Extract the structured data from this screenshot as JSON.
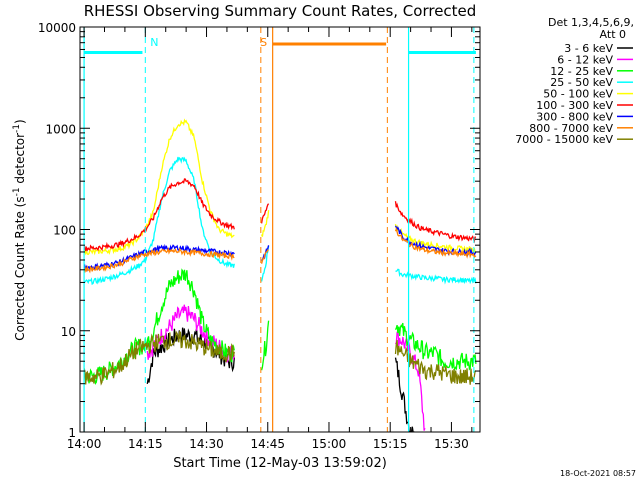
{
  "chart_data": {
    "type": "line",
    "title": "RHESSI Observing Summary Count Rates, Corrected",
    "xlabel": "Start Time (12-May-03 13:59:02)",
    "ylabel": "Corrected Count Rate (s⁻¹ detector⁻¹)",
    "ylabel_main": "Corrected Count Rate (s",
    "ylabel_mid": " detector",
    "ylabel_close": ")",
    "yscale": "log",
    "ylim": [
      1,
      10000
    ],
    "xlim_minutes": [
      -1,
      97
    ],
    "x_ticks": [
      {
        "label": "14:00",
        "min": 0
      },
      {
        "label": "14:15",
        "min": 15
      },
      {
        "label": "14:30",
        "min": 30
      },
      {
        "label": "14:45",
        "min": 45
      },
      {
        "label": "15:00",
        "min": 60
      },
      {
        "label": "15:15",
        "min": 75
      },
      {
        "label": "15:30",
        "min": 90
      }
    ],
    "y_ticks": [
      {
        "label": "1",
        "v": 1
      },
      {
        "label": "10",
        "v": 10
      },
      {
        "label": "100",
        "v": 100
      },
      {
        "label": "1000",
        "v": 1000
      },
      {
        "label": "10000",
        "v": 10000
      }
    ],
    "legend_header": [
      "Det 1,3,4,5,6,9,",
      "Att 0"
    ],
    "legend_position": "right",
    "timestamp": "18-Oct-2021 08:57",
    "series": [
      {
        "name": "3 - 6 keV",
        "color": "#000000",
        "segments": [
          {
            "x": [
              15.5,
              17,
              19,
              21,
              23,
              25,
              27,
              29,
              31,
              33,
              35,
              36.8
            ],
            "y": [
              3,
              6,
              7,
              8,
              9,
              9,
              9,
              8,
              7,
              6,
              5,
              5
            ]
          },
          {
            "x": [
              76.3,
              77.5,
              79,
              80,
              81
            ],
            "y": [
              5,
              3,
              1.5,
              1,
              1
            ]
          }
        ]
      },
      {
        "name": "6 - 12 keV",
        "color": "#ff00ff",
        "segments": [
          {
            "x": [
              15.5,
              17,
              19,
              21,
              23,
              25,
              27,
              29,
              31,
              33,
              35,
              36.8
            ],
            "y": [
              6,
              7,
              9,
              11,
              14,
              15,
              13,
              10,
              8,
              7,
              6,
              6
            ]
          },
          {
            "x": [
              76.3,
              78,
              80,
              82,
              83.5
            ],
            "y": [
              9,
              8,
              6,
              4,
              1
            ]
          }
        ]
      },
      {
        "name": "12 - 25 keV",
        "color": "#00ff00",
        "segments": [
          {
            "x": [
              0,
              3,
              6,
              9,
              11,
              13,
              15,
              17,
              19,
              21,
              23,
              25,
              27,
              29,
              31,
              33,
              35,
              36.8
            ],
            "y": [
              3.5,
              3.6,
              4,
              5,
              6,
              7,
              7,
              10,
              18,
              28,
              34,
              37,
              25,
              12,
              8,
              7,
              6,
              6
            ]
          },
          {
            "x": [
              43.5,
              44.5,
              45.2
            ],
            "y": [
              5,
              7,
              12
            ]
          },
          {
            "x": [
              76.3,
              78,
              80,
              82,
              84,
              86,
              88,
              90,
              92,
              94,
              96
            ],
            "y": [
              12,
              10,
              8,
              7,
              6,
              6,
              5,
              5,
              5,
              5,
              5
            ]
          }
        ]
      },
      {
        "name": "25 - 50 keV",
        "color": "#00ffff",
        "segments": [
          {
            "x": [
              0,
              3,
              6,
              9,
              11,
              13,
              15,
              17,
              19,
              21,
              23,
              25,
              27,
              29,
              31,
              33,
              35,
              36.8
            ],
            "y": [
              30,
              31,
              33,
              36,
              39,
              43,
              50,
              80,
              200,
              380,
              500,
              480,
              300,
              100,
              60,
              50,
              45,
              44
            ]
          },
          {
            "x": [
              43.5,
              44.5,
              45.2
            ],
            "y": [
              30,
              45,
              70
            ]
          },
          {
            "x": [
              76.3,
              78,
              80,
              82,
              84,
              86,
              88,
              90,
              92,
              94,
              96
            ],
            "y": [
              40,
              36,
              35,
              34,
              33,
              33,
              32,
              32,
              32,
              31,
              31
            ]
          }
        ]
      },
      {
        "name": "50 - 100 keV",
        "color": "#ffff00",
        "segments": [
          {
            "x": [
              0,
              3,
              6,
              9,
              11,
              13,
              15,
              17,
              19,
              21,
              23,
              25,
              27,
              29,
              31,
              33,
              35,
              36.8
            ],
            "y": [
              60,
              60,
              62,
              65,
              70,
              80,
              100,
              150,
              400,
              800,
              1100,
              1150,
              800,
              300,
              150,
              100,
              90,
              85
            ]
          },
          {
            "x": [
              43.5,
              44.5,
              45.2
            ],
            "y": [
              85,
              110,
              150
            ]
          },
          {
            "x": [
              76.3,
              78,
              80,
              82,
              84,
              86,
              88,
              90,
              92,
              94,
              96
            ],
            "y": [
              110,
              90,
              80,
              75,
              72,
              70,
              68,
              66,
              65,
              64,
              63
            ]
          }
        ]
      },
      {
        "name": "100 - 300 keV",
        "color": "#ff0000",
        "segments": [
          {
            "x": [
              0,
              3,
              6,
              9,
              11,
              13,
              15,
              17,
              19,
              21,
              23,
              25,
              27,
              29,
              31,
              33,
              35,
              36.8
            ],
            "y": [
              65,
              66,
              68,
              72,
              78,
              85,
              100,
              130,
              200,
              260,
              290,
              300,
              270,
              180,
              140,
              120,
              110,
              105
            ]
          },
          {
            "x": [
              43.5,
              44.5,
              45.2
            ],
            "y": [
              120,
              150,
              190
            ]
          },
          {
            "x": [
              76.3,
              78,
              80,
              82,
              84,
              86,
              88,
              90,
              92,
              94,
              96
            ],
            "y": [
              180,
              140,
              120,
              105,
              98,
              94,
              90,
              86,
              84,
              82,
              80
            ]
          }
        ]
      },
      {
        "name": "300 - 800 keV",
        "color": "#0000ff",
        "segments": [
          {
            "x": [
              0,
              3,
              6,
              9,
              11,
              13,
              15,
              17,
              19,
              21,
              23,
              25,
              27,
              29,
              31,
              33,
              35,
              36.8
            ],
            "y": [
              42,
              43,
              45,
              48,
              52,
              56,
              60,
              63,
              65,
              66,
              66,
              65,
              63,
              62,
              61,
              60,
              59,
              58
            ]
          },
          {
            "x": [
              43.5,
              44.5,
              45.2
            ],
            "y": [
              50,
              58,
              68
            ]
          },
          {
            "x": [
              76.3,
              78,
              80,
              82,
              84,
              86,
              88,
              90,
              92,
              94,
              96
            ],
            "y": [
              110,
              85,
              75,
              70,
              66,
              64,
              62,
              61,
              60,
              60,
              59
            ]
          }
        ]
      },
      {
        "name": "800 - 7000 keV",
        "color": "#ff8000",
        "segments": [
          {
            "x": [
              0,
              3,
              6,
              9,
              11,
              13,
              15,
              17,
              19,
              21,
              23,
              25,
              27,
              29,
              31,
              33,
              35,
              36.8
            ],
            "y": [
              40,
              41,
              43,
              46,
              50,
              54,
              57,
              59,
              60,
              61,
              61,
              60,
              59,
              58,
              57,
              56,
              55,
              55
            ]
          },
          {
            "x": [
              43.5,
              44.5,
              45.2
            ],
            "y": [
              48,
              56,
              65
            ]
          },
          {
            "x": [
              76.3,
              78,
              80,
              82,
              84,
              86,
              88,
              90,
              92,
              94,
              96
            ],
            "y": [
              100,
              80,
              70,
              65,
              62,
              60,
              59,
              58,
              57,
              57,
              56
            ]
          }
        ]
      },
      {
        "name": "7000 - 15000 keV",
        "color": "#808000",
        "segments": [
          {
            "x": [
              0,
              3,
              6,
              9,
              11,
              13,
              15,
              17,
              19,
              21,
              23,
              25,
              27,
              29,
              31,
              33,
              35,
              36.8
            ],
            "y": [
              3.5,
              3.5,
              3.8,
              4.5,
              5.5,
              6.5,
              7,
              7.5,
              8,
              8,
              8,
              8,
              7.5,
              7,
              6.5,
              6,
              6,
              6
            ]
          },
          {
            "x": [
              76.3,
              78,
              80,
              82,
              84,
              86,
              88,
              90,
              92,
              94,
              96
            ],
            "y": [
              7,
              6,
              5,
              4.5,
              4,
              4,
              3.8,
              3.6,
              3.5,
              3.5,
              3.5
            ]
          }
        ]
      }
    ],
    "annotations": [
      {
        "label": "N",
        "color": "#00ffff",
        "bar_y": 5600,
        "bars": [
          [
            0,
            14.3
          ],
          [
            79.5,
            96
          ]
        ],
        "dashes": [
          15,
          95.5
        ],
        "solids": [
          0,
          79.5
        ]
      },
      {
        "label": "S",
        "color": "#ff8000",
        "bar_y": 6800,
        "bars": [
          [
            46.2,
            74
          ]
        ],
        "dashes": [
          43.3,
          74.3
        ],
        "solids": [
          46.2
        ]
      }
    ]
  }
}
